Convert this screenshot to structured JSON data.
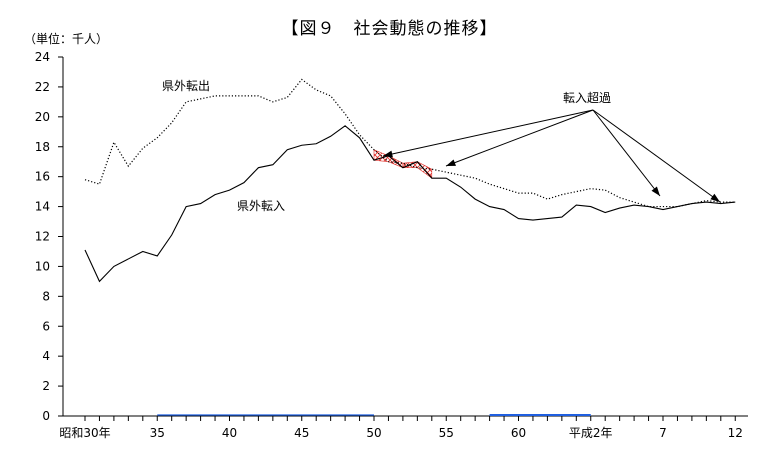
{
  "chart_data": {
    "type": "line",
    "title": "【図９　社会動態の推移】",
    "ylabel": "（単位：千人）",
    "xlabel": "",
    "ylim": [
      0,
      24
    ],
    "yticks": [
      0,
      2,
      4,
      6,
      8,
      10,
      12,
      14,
      16,
      18,
      20,
      22,
      24
    ],
    "x_tick_labels": [
      "昭和30年",
      "35",
      "40",
      "45",
      "50",
      "55",
      "60",
      "平成2年",
      "7",
      "12"
    ],
    "x_tick_years": [
      1955,
      1960,
      1965,
      1970,
      1975,
      1980,
      1985,
      1990,
      1995,
      2000
    ],
    "x": [
      1955,
      1956,
      1957,
      1958,
      1959,
      1960,
      1961,
      1962,
      1963,
      1964,
      1965,
      1966,
      1967,
      1968,
      1969,
      1970,
      1971,
      1972,
      1973,
      1974,
      1975,
      1976,
      1977,
      1978,
      1979,
      1980,
      1981,
      1982,
      1983,
      1984,
      1985,
      1986,
      1987,
      1988,
      1989,
      1990,
      1991,
      1992,
      1993,
      1994,
      1995,
      1996,
      1997,
      1998,
      1999,
      2000
    ],
    "series": [
      {
        "name": "県外転出",
        "style": "dotted",
        "values": [
          15.8,
          15.5,
          18.3,
          16.7,
          17.9,
          18.6,
          19.6,
          21.0,
          21.2,
          21.4,
          21.4,
          21.4,
          21.4,
          21.0,
          21.3,
          22.5,
          21.8,
          21.4,
          20.2,
          18.8,
          17.8,
          17.0,
          16.9,
          16.6,
          16.5,
          16.3,
          16.1,
          15.9,
          15.5,
          15.2,
          14.9,
          14.9,
          14.5,
          14.8,
          15.0,
          15.2,
          15.1,
          14.6,
          14.3,
          14.0,
          14.0,
          14.0,
          14.2,
          14.4,
          14.3,
          14.3
        ]
      },
      {
        "name": "県外転入",
        "style": "solid",
        "values": [
          11.1,
          9.0,
          10.0,
          10.5,
          11.0,
          10.7,
          12.1,
          14.0,
          14.2,
          14.8,
          15.1,
          15.6,
          16.6,
          16.8,
          17.8,
          18.1,
          18.2,
          18.7,
          19.4,
          18.6,
          17.1,
          17.4,
          16.6,
          17.0,
          15.9,
          15.9,
          15.3,
          14.5,
          14.0,
          13.8,
          13.2,
          13.1,
          13.2,
          13.3,
          14.1,
          14.0,
          13.6,
          13.9,
          14.1,
          14.0,
          13.8,
          14.0,
          14.2,
          14.3,
          14.2,
          14.3
        ]
      }
    ],
    "annotation": "転入超過",
    "colors": {
      "axis": "#000000",
      "excess_hatch": "#e0302a",
      "baseline_accent": "#1f5fe0"
    }
  }
}
